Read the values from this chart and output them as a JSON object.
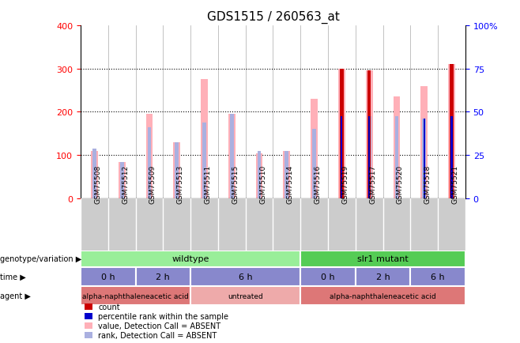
{
  "title": "GDS1515 / 260563_at",
  "samples": [
    "GSM75508",
    "GSM75512",
    "GSM75509",
    "GSM75513",
    "GSM75511",
    "GSM75515",
    "GSM75510",
    "GSM75514",
    "GSM75516",
    "GSM75519",
    "GSM75517",
    "GSM75520",
    "GSM75518",
    "GSM75521"
  ],
  "pink_values": [
    110,
    85,
    195,
    130,
    275,
    195,
    105,
    110,
    230,
    300,
    295,
    235,
    260,
    310
  ],
  "blue_rank_values": [
    115,
    85,
    165,
    130,
    175,
    195,
    110,
    110,
    160,
    190,
    190,
    190,
    185,
    190
  ],
  "red_values": [
    0,
    0,
    0,
    0,
    0,
    0,
    0,
    0,
    0,
    300,
    295,
    0,
    0,
    310
  ],
  "blue_dot_values": [
    0,
    0,
    0,
    0,
    0,
    0,
    0,
    0,
    0,
    190,
    190,
    0,
    185,
    190
  ],
  "ylim": [
    0,
    400
  ],
  "y2lim": [
    0,
    100
  ],
  "yticks": [
    0,
    100,
    200,
    300,
    400
  ],
  "y2ticks": [
    0,
    25,
    50,
    75,
    100
  ],
  "y2tick_labels": [
    "0",
    "25",
    "50",
    "75",
    "100%"
  ],
  "time_spans": [
    [
      0,
      2,
      "0 h"
    ],
    [
      2,
      4,
      "2 h"
    ],
    [
      4,
      8,
      "6 h"
    ],
    [
      8,
      10,
      "0 h"
    ],
    [
      10,
      12,
      "2 h"
    ],
    [
      12,
      14,
      "6 h"
    ]
  ],
  "agent_spans": [
    [
      0,
      4,
      "alpha-naphthaleneacetic acid",
      1
    ],
    [
      4,
      8,
      "untreated",
      0
    ],
    [
      8,
      14,
      "alpha-naphthaleneacetic acid",
      1
    ]
  ],
  "color_pink": "#ffb0b8",
  "color_blue_rank": "#aab0e0",
  "color_red": "#cc0000",
  "color_blue_dot": "#0000cc",
  "color_wildtype_green": "#99ee99",
  "color_slr1_green": "#55cc55",
  "color_time_purple": "#8888cc",
  "color_agent_red": "#dd7777",
  "color_agent_lightred": "#eeaaaa",
  "color_sample_bg": "#cccccc"
}
